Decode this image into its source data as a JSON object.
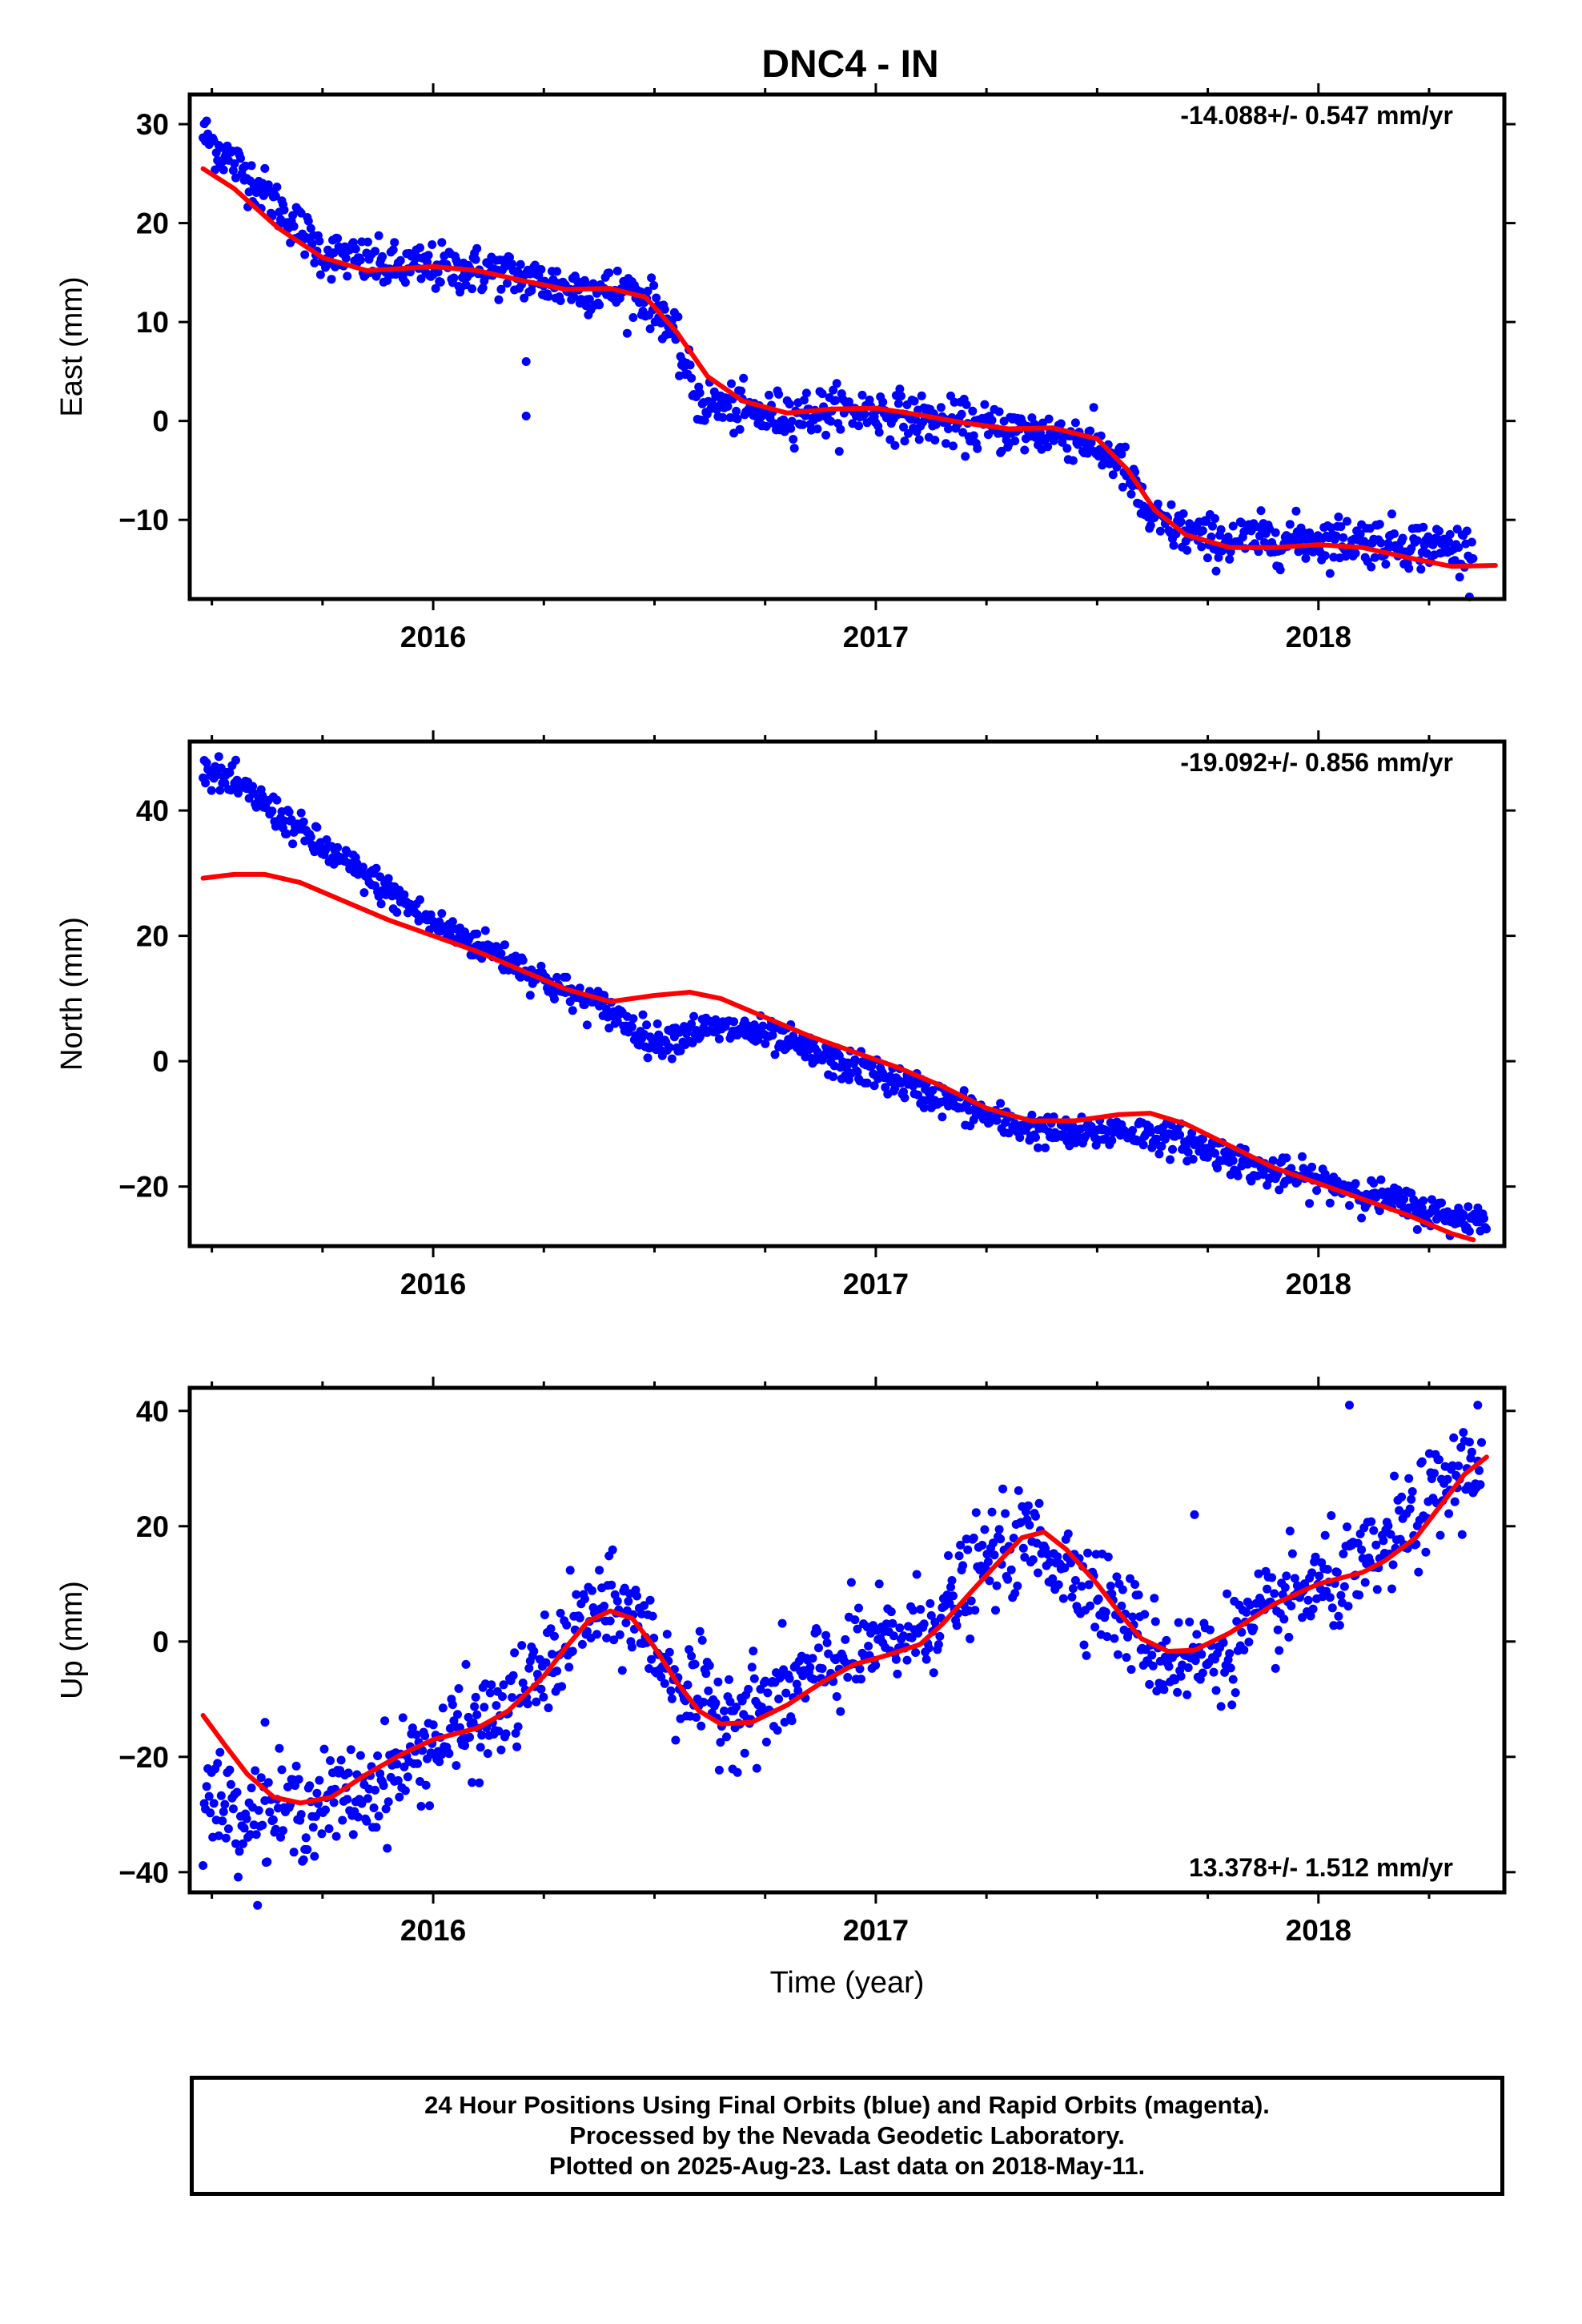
{
  "chart_data": [
    {
      "type": "scatter",
      "title": "DNC4 - IN",
      "ylabel": "East (mm)",
      "xlabel": "",
      "rate_annotation": "-14.088+/- 0.547 mm/yr",
      "xlim": [
        2015.45,
        2018.42
      ],
      "ylim": [
        -18,
        33
      ],
      "x_ticks": [
        2016,
        2017,
        2018
      ],
      "y_ticks": [
        -10,
        0,
        10,
        20,
        30
      ],
      "y_tick_labels": [
        "−10",
        "0",
        "10",
        "20",
        "30"
      ],
      "series": [
        {
          "color": "#0000ff",
          "points_trend": [
            [
              2015.48,
              29
            ],
            [
              2015.6,
              24
            ],
            [
              2015.75,
              17
            ],
            [
              2015.9,
              15.5
            ],
            [
              2016.0,
              15.5
            ],
            [
              2016.15,
              15
            ],
            [
              2016.3,
              13.5
            ],
            [
              2016.45,
              13
            ],
            [
              2016.52,
              11
            ],
            [
              2016.6,
              2
            ],
            [
              2016.75,
              0.5
            ],
            [
              2016.9,
              1
            ],
            [
              2017.0,
              1
            ],
            [
              2017.2,
              -0.5
            ],
            [
              2017.45,
              -1.5
            ],
            [
              2017.55,
              -4
            ],
            [
              2017.62,
              -10
            ],
            [
              2017.75,
              -12
            ],
            [
              2017.9,
              -12
            ],
            [
              2018.1,
              -12
            ],
            [
              2018.35,
              -13
            ]
          ],
          "outliers": [
            [
              2016.21,
              6
            ],
            [
              2016.21,
              0.5
            ]
          ]
        },
        {
          "color": "#ff0000",
          "curve": [
            [
              2015.48,
              25.5
            ],
            [
              2015.55,
              23.5
            ],
            [
              2015.65,
              19.5
            ],
            [
              2015.75,
              16.5
            ],
            [
              2015.85,
              15.2
            ],
            [
              2016.0,
              15.6
            ],
            [
              2016.1,
              15.2
            ],
            [
              2016.2,
              14.2
            ],
            [
              2016.3,
              13.3
            ],
            [
              2016.4,
              13.4
            ],
            [
              2016.48,
              12.5
            ],
            [
              2016.55,
              9
            ],
            [
              2016.62,
              4.5
            ],
            [
              2016.7,
              2
            ],
            [
              2016.8,
              0.8
            ],
            [
              2016.9,
              1.2
            ],
            [
              2017.0,
              1.3
            ],
            [
              2017.1,
              0.6
            ],
            [
              2017.2,
              -0.2
            ],
            [
              2017.3,
              -0.8
            ],
            [
              2017.4,
              -0.7
            ],
            [
              2017.5,
              -1.8
            ],
            [
              2017.57,
              -5
            ],
            [
              2017.63,
              -9
            ],
            [
              2017.7,
              -11.5
            ],
            [
              2017.8,
              -12.8
            ],
            [
              2017.9,
              -12.8
            ],
            [
              2018.0,
              -12.5
            ],
            [
              2018.1,
              -12.8
            ],
            [
              2018.2,
              -13.8
            ],
            [
              2018.3,
              -14.7
            ],
            [
              2018.4,
              -14.6
            ]
          ]
        }
      ]
    },
    {
      "type": "scatter",
      "title": "",
      "ylabel": "North (mm)",
      "xlabel": "",
      "rate_annotation": "-19.092+/- 0.856 mm/yr",
      "xlim": [
        2015.45,
        2018.42
      ],
      "ylim": [
        -29.5,
        51
      ],
      "x_ticks": [
        2016,
        2017,
        2018
      ],
      "y_ticks": [
        -20,
        0,
        20,
        40
      ],
      "y_tick_labels": [
        "−20",
        "0",
        "20",
        "40"
      ],
      "series": [
        {
          "color": "#0000ff",
          "points_trend": [
            [
              2015.48,
              47
            ],
            [
              2015.6,
              42
            ],
            [
              2015.75,
              34
            ],
            [
              2015.9,
              27
            ],
            [
              2016.0,
              22
            ],
            [
              2016.15,
              17
            ],
            [
              2016.3,
              11
            ],
            [
              2016.4,
              8
            ],
            [
              2016.5,
              3
            ],
            [
              2016.6,
              5
            ],
            [
              2016.7,
              5
            ],
            [
              2016.8,
              3
            ],
            [
              2016.9,
              0
            ],
            [
              2017.0,
              -2
            ],
            [
              2017.15,
              -6
            ],
            [
              2017.3,
              -10
            ],
            [
              2017.45,
              -12
            ],
            [
              2017.55,
              -11
            ],
            [
              2017.65,
              -12
            ],
            [
              2017.75,
              -14
            ],
            [
              2017.9,
              -18
            ],
            [
              2018.0,
              -19
            ],
            [
              2018.15,
              -22
            ],
            [
              2018.3,
              -25
            ],
            [
              2018.38,
              -25
            ]
          ]
        },
        {
          "color": "#ff0000",
          "curve": [
            [
              2015.48,
              29.2
            ],
            [
              2015.55,
              29.8
            ],
            [
              2015.62,
              29.8
            ],
            [
              2015.7,
              28.5
            ],
            [
              2015.8,
              25.5
            ],
            [
              2015.9,
              22.5
            ],
            [
              2016.0,
              20
            ],
            [
              2016.1,
              17.5
            ],
            [
              2016.2,
              14.5
            ],
            [
              2016.3,
              11.5
            ],
            [
              2016.4,
              9.5
            ],
            [
              2016.5,
              10.5
            ],
            [
              2016.58,
              11
            ],
            [
              2016.65,
              10
            ],
            [
              2016.75,
              7
            ],
            [
              2016.85,
              4
            ],
            [
              2016.95,
              1.5
            ],
            [
              2017.05,
              -1
            ],
            [
              2017.15,
              -4
            ],
            [
              2017.25,
              -7.5
            ],
            [
              2017.35,
              -9.5
            ],
            [
              2017.45,
              -9.5
            ],
            [
              2017.55,
              -8.5
            ],
            [
              2017.62,
              -8.3
            ],
            [
              2017.7,
              -10
            ],
            [
              2017.8,
              -13.5
            ],
            [
              2017.9,
              -17
            ],
            [
              2018.0,
              -19.5
            ],
            [
              2018.1,
              -22
            ],
            [
              2018.2,
              -24.5
            ],
            [
              2018.3,
              -27.5
            ],
            [
              2018.35,
              -28.5
            ]
          ]
        }
      ]
    },
    {
      "type": "scatter",
      "title": "",
      "ylabel": "Up (mm)",
      "xlabel": "Time (year)",
      "rate_annotation": "13.378+/- 1.512 mm/yr",
      "xlim": [
        2015.45,
        2018.42
      ],
      "ylim": [
        -43.5,
        44
      ],
      "x_ticks": [
        2016,
        2017,
        2018
      ],
      "y_ticks": [
        -40,
        -20,
        0,
        20,
        40
      ],
      "y_tick_labels": [
        "−40",
        "−20",
        "0",
        "20",
        "40"
      ],
      "series": [
        {
          "color": "#0000ff",
          "points_trend": [
            [
              2015.48,
              -27
            ],
            [
              2015.6,
              -30
            ],
            [
              2015.7,
              -29
            ],
            [
              2015.85,
              -26
            ],
            [
              2016.0,
              -18
            ],
            [
              2016.15,
              -13
            ],
            [
              2016.25,
              -5
            ],
            [
              2016.35,
              5
            ],
            [
              2016.45,
              5
            ],
            [
              2016.55,
              -7
            ],
            [
              2016.65,
              -12
            ],
            [
              2016.75,
              -11
            ],
            [
              2016.85,
              -6
            ],
            [
              2016.95,
              -2
            ],
            [
              2017.05,
              0
            ],
            [
              2017.15,
              5
            ],
            [
              2017.25,
              14
            ],
            [
              2017.35,
              18
            ],
            [
              2017.45,
              12
            ],
            [
              2017.55,
              5
            ],
            [
              2017.65,
              -3
            ],
            [
              2017.75,
              -3
            ],
            [
              2017.85,
              2
            ],
            [
              2017.95,
              8
            ],
            [
              2018.1,
              12
            ],
            [
              2018.2,
              20
            ],
            [
              2018.3,
              28
            ],
            [
              2018.37,
              32
            ]
          ],
          "outliers": [
            [
              2018.07,
              41
            ],
            [
              2018.36,
              41
            ],
            [
              2017.72,
              22
            ],
            [
              2015.62,
              -14
            ]
          ]
        },
        {
          "color": "#ff0000",
          "curve": [
            [
              2015.48,
              -12.8
            ],
            [
              2015.53,
              -18
            ],
            [
              2015.58,
              -23
            ],
            [
              2015.64,
              -27
            ],
            [
              2015.7,
              -28
            ],
            [
              2015.77,
              -27
            ],
            [
              2015.85,
              -23
            ],
            [
              2015.93,
              -19.5
            ],
            [
              2016.0,
              -17
            ],
            [
              2016.1,
              -15
            ],
            [
              2016.17,
              -12
            ],
            [
              2016.25,
              -6
            ],
            [
              2016.3,
              -1
            ],
            [
              2016.35,
              3.5
            ],
            [
              2016.4,
              5.3
            ],
            [
              2016.45,
              4
            ],
            [
              2016.5,
              -1
            ],
            [
              2016.55,
              -7
            ],
            [
              2016.6,
              -12
            ],
            [
              2016.65,
              -14.3
            ],
            [
              2016.72,
              -14
            ],
            [
              2016.8,
              -11
            ],
            [
              2016.88,
              -7
            ],
            [
              2016.95,
              -4
            ],
            [
              2017.02,
              -2.5
            ],
            [
              2017.1,
              -0.5
            ],
            [
              2017.15,
              3
            ],
            [
              2017.22,
              9
            ],
            [
              2017.28,
              14
            ],
            [
              2017.33,
              18
            ],
            [
              2017.38,
              19
            ],
            [
              2017.43,
              16
            ],
            [
              2017.5,
              10
            ],
            [
              2017.55,
              5
            ],
            [
              2017.6,
              0.5
            ],
            [
              2017.66,
              -1.7
            ],
            [
              2017.72,
              -1.5
            ],
            [
              2017.8,
              1.5
            ],
            [
              2017.9,
              6.5
            ],
            [
              2018.0,
              10
            ],
            [
              2018.1,
              12
            ],
            [
              2018.15,
              14
            ],
            [
              2018.22,
              18
            ],
            [
              2018.28,
              24
            ],
            [
              2018.33,
              29
            ],
            [
              2018.38,
              32
            ]
          ]
        }
      ]
    }
  ],
  "caption": {
    "line1": "24 Hour Positions Using Final Orbits (blue) and Rapid Orbits (magenta).",
    "line2": "Processed by the Nevada Geodetic Laboratory.",
    "line3": "Plotted on 2025-Aug-23. Last data on 2018-May-11."
  }
}
